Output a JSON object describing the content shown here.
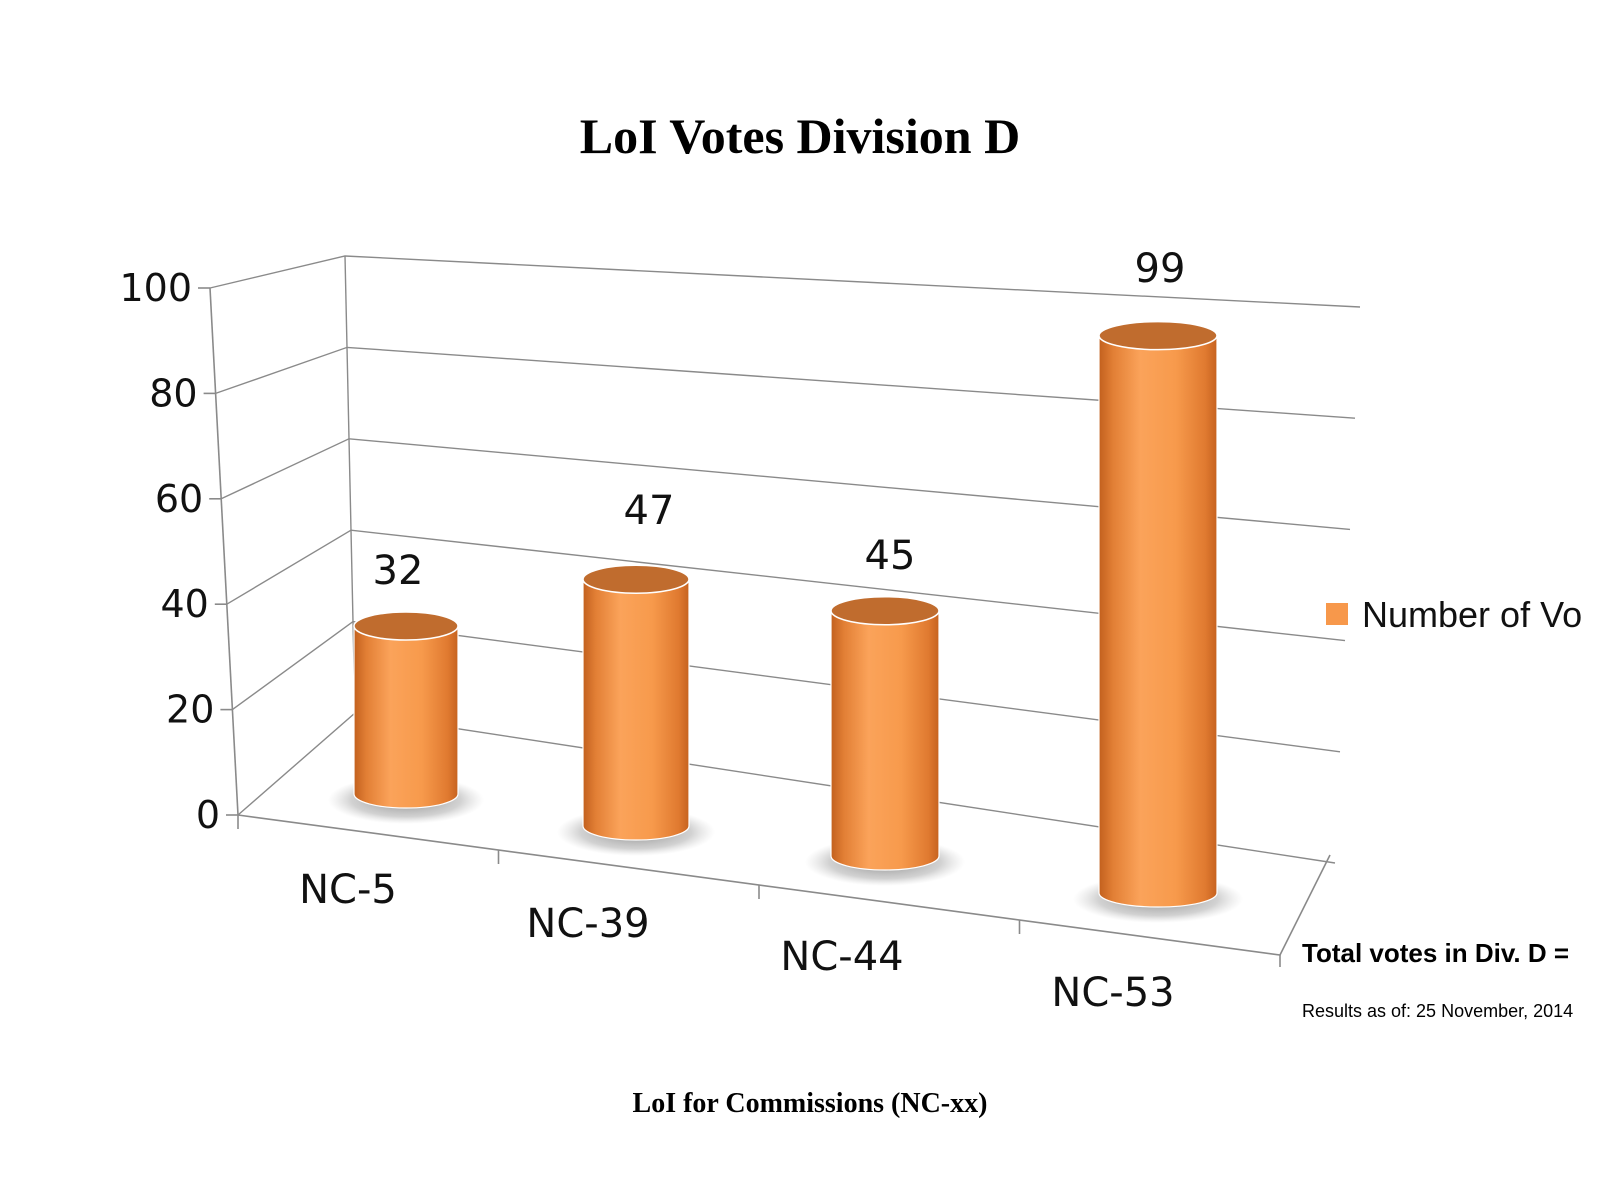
{
  "chart_data": {
    "type": "bar",
    "style": "3d-cylinder",
    "title": "LoI Votes Division D",
    "xlabel": "LoI for Commissions (NC-xx)",
    "ylabel": "",
    "categories": [
      "NC-5",
      "NC-39",
      "NC-44",
      "NC-53"
    ],
    "series": [
      {
        "name": "Number of Vo",
        "values": [
          32,
          47,
          45,
          99
        ],
        "color": "#F7984B"
      }
    ],
    "data_labels": [
      "32",
      "47",
      "45",
      "99"
    ],
    "ylim": [
      0,
      100
    ],
    "yticks": [
      0,
      20,
      40,
      60,
      80,
      100
    ],
    "ytick_labels": [
      "0",
      "20",
      "40",
      "60",
      "80",
      "100"
    ],
    "grid": true,
    "legend": {
      "position": "right",
      "label": "Number of Vo"
    },
    "annotations": {
      "total_votes": "Total votes in Div. D =",
      "results_date": "Results as of: 25 November, 2014"
    }
  }
}
